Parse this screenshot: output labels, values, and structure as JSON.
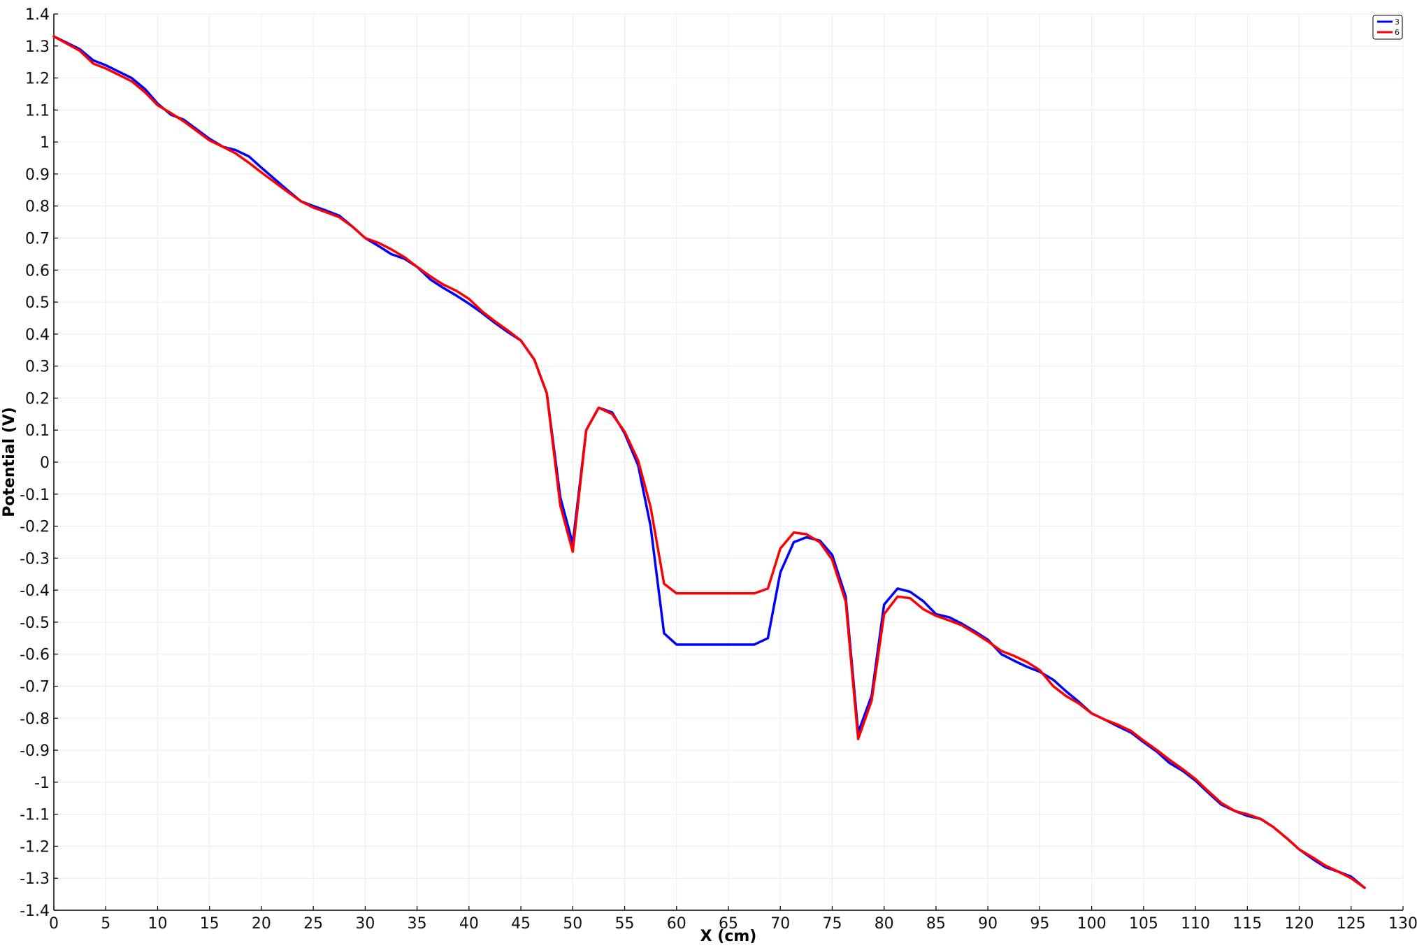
{
  "chart_data": {
    "type": "line",
    "xlabel": "X (cm)",
    "ylabel": "Potential (V)",
    "xlim": [
      0,
      130
    ],
    "ylim": [
      -1.4,
      1.4
    ],
    "x_ticks": [
      0,
      5,
      10,
      15,
      20,
      25,
      30,
      35,
      40,
      45,
      50,
      55,
      60,
      65,
      70,
      75,
      80,
      85,
      90,
      95,
      100,
      105,
      110,
      115,
      120,
      125,
      130
    ],
    "x_tick_labels": [
      "0",
      "5",
      "10",
      "15",
      "20",
      "25",
      "30",
      "35",
      "40",
      "45",
      "50",
      "55",
      "60",
      "65",
      "70",
      "75",
      "80",
      "85",
      "90",
      "95",
      "100",
      "105",
      "110",
      "115",
      "120",
      "125",
      "130"
    ],
    "y_ticks": [
      -1.4,
      -1.3,
      -1.2,
      -1.1,
      -1.0,
      -0.9,
      -0.8,
      -0.7,
      -0.6,
      -0.5,
      -0.4,
      -0.3,
      -0.2,
      -0.1,
      0,
      0.1,
      0.2,
      0.3,
      0.4,
      0.5,
      0.6,
      0.7,
      0.8,
      0.9,
      1.0,
      1.1,
      1.2,
      1.3,
      1.4
    ],
    "y_tick_labels": [
      "-1.4",
      "-1.3",
      "-1.2",
      "-1.1",
      "-1",
      "-0.9",
      "-0.8",
      "-0.7",
      "-0.6",
      "-0.5",
      "-0.4",
      "-0.3",
      "-0.2",
      "-0.1",
      "0",
      "0.1",
      "0.2",
      "0.3",
      "0.4",
      "0.5",
      "0.6",
      "0.7",
      "0.8",
      "0.9",
      "1",
      "1.1",
      "1.2",
      "1.3",
      "1.4"
    ],
    "grid": true,
    "legend_position": "top-right",
    "series": [
      {
        "name": "3",
        "color": "#0000ff",
        "points": [
          [
            0,
            1.33
          ],
          [
            2.5,
            1.29
          ],
          [
            3.8,
            1.255
          ],
          [
            5.0,
            1.24
          ],
          [
            7.5,
            1.2
          ],
          [
            8.8,
            1.165
          ],
          [
            10,
            1.12
          ],
          [
            11.3,
            1.085
          ],
          [
            12.5,
            1.07
          ],
          [
            15.0,
            1.01
          ],
          [
            16.3,
            0.985
          ],
          [
            17.5,
            0.975
          ],
          [
            18.8,
            0.955
          ],
          [
            20.0,
            0.92
          ],
          [
            22.5,
            0.85
          ],
          [
            23.8,
            0.815
          ],
          [
            25.0,
            0.8
          ],
          [
            26.3,
            0.785
          ],
          [
            27.5,
            0.77
          ],
          [
            28.8,
            0.735
          ],
          [
            30.0,
            0.7
          ],
          [
            31.3,
            0.675
          ],
          [
            32.5,
            0.65
          ],
          [
            33.8,
            0.635
          ],
          [
            35.0,
            0.61
          ],
          [
            36.3,
            0.57
          ],
          [
            37.5,
            0.545
          ],
          [
            38.8,
            0.52
          ],
          [
            40.0,
            0.495
          ],
          [
            41.3,
            0.465
          ],
          [
            42.5,
            0.435
          ],
          [
            43.8,
            0.405
          ],
          [
            45.0,
            0.38
          ],
          [
            46.3,
            0.32
          ],
          [
            47.5,
            0.215
          ],
          [
            48.8,
            -0.11
          ],
          [
            50.0,
            -0.255
          ],
          [
            51.3,
            0.1
          ],
          [
            52.5,
            0.17
          ],
          [
            53.8,
            0.155
          ],
          [
            55.0,
            0.09
          ],
          [
            56.3,
            -0.01
          ],
          [
            57.5,
            -0.2
          ],
          [
            58.8,
            -0.535
          ],
          [
            60.0,
            -0.57
          ],
          [
            62.5,
            -0.57
          ],
          [
            65.0,
            -0.57
          ],
          [
            67.5,
            -0.57
          ],
          [
            68.8,
            -0.55
          ],
          [
            70.0,
            -0.345
          ],
          [
            71.3,
            -0.25
          ],
          [
            72.5,
            -0.235
          ],
          [
            73.8,
            -0.245
          ],
          [
            75.0,
            -0.29
          ],
          [
            76.3,
            -0.42
          ],
          [
            77.5,
            -0.845
          ],
          [
            78.8,
            -0.73
          ],
          [
            80.0,
            -0.445
          ],
          [
            81.3,
            -0.395
          ],
          [
            82.5,
            -0.405
          ],
          [
            83.8,
            -0.435
          ],
          [
            85.0,
            -0.475
          ],
          [
            86.3,
            -0.485
          ],
          [
            87.5,
            -0.505
          ],
          [
            88.8,
            -0.53
          ],
          [
            90.0,
            -0.555
          ],
          [
            91.3,
            -0.6
          ],
          [
            92.5,
            -0.62
          ],
          [
            93.8,
            -0.64
          ],
          [
            95.0,
            -0.655
          ],
          [
            96.3,
            -0.68
          ],
          [
            97.5,
            -0.715
          ],
          [
            98.8,
            -0.75
          ],
          [
            100.0,
            -0.785
          ],
          [
            101.3,
            -0.805
          ],
          [
            102.5,
            -0.825
          ],
          [
            103.8,
            -0.845
          ],
          [
            105.0,
            -0.875
          ],
          [
            106.3,
            -0.905
          ],
          [
            107.5,
            -0.94
          ],
          [
            108.8,
            -0.965
          ],
          [
            110.0,
            -0.995
          ],
          [
            111.3,
            -1.035
          ],
          [
            112.5,
            -1.07
          ],
          [
            113.8,
            -1.09
          ],
          [
            115.0,
            -1.105
          ],
          [
            116.3,
            -1.115
          ],
          [
            117.5,
            -1.14
          ],
          [
            118.8,
            -1.175
          ],
          [
            120.0,
            -1.21
          ],
          [
            121.3,
            -1.24
          ],
          [
            122.5,
            -1.265
          ],
          [
            123.8,
            -1.28
          ],
          [
            125.0,
            -1.295
          ],
          [
            126.3,
            -1.33
          ]
        ]
      },
      {
        "name": "6",
        "color": "#ff0000",
        "points": [
          [
            0,
            1.33
          ],
          [
            2.5,
            1.285
          ],
          [
            3.8,
            1.245
          ],
          [
            5.0,
            1.23
          ],
          [
            7.5,
            1.19
          ],
          [
            8.8,
            1.155
          ],
          [
            10,
            1.115
          ],
          [
            11.3,
            1.09
          ],
          [
            12.5,
            1.065
          ],
          [
            15.0,
            1.005
          ],
          [
            16.3,
            0.985
          ],
          [
            17.5,
            0.965
          ],
          [
            18.8,
            0.935
          ],
          [
            20.0,
            0.905
          ],
          [
            22.5,
            0.845
          ],
          [
            23.8,
            0.815
          ],
          [
            25.0,
            0.795
          ],
          [
            26.3,
            0.78
          ],
          [
            27.5,
            0.765
          ],
          [
            28.8,
            0.735
          ],
          [
            30.0,
            0.7
          ],
          [
            31.3,
            0.685
          ],
          [
            32.5,
            0.665
          ],
          [
            33.8,
            0.64
          ],
          [
            35.0,
            0.61
          ],
          [
            36.3,
            0.58
          ],
          [
            37.5,
            0.555
          ],
          [
            38.8,
            0.535
          ],
          [
            40.0,
            0.51
          ],
          [
            41.3,
            0.47
          ],
          [
            42.5,
            0.44
          ],
          [
            43.8,
            0.41
          ],
          [
            45.0,
            0.38
          ],
          [
            46.3,
            0.32
          ],
          [
            47.5,
            0.215
          ],
          [
            48.8,
            -0.135
          ],
          [
            50.0,
            -0.28
          ],
          [
            51.3,
            0.1
          ],
          [
            52.5,
            0.17
          ],
          [
            53.8,
            0.15
          ],
          [
            55.0,
            0.095
          ],
          [
            56.3,
            0.005
          ],
          [
            57.5,
            -0.14
          ],
          [
            58.8,
            -0.38
          ],
          [
            60.0,
            -0.41
          ],
          [
            62.5,
            -0.41
          ],
          [
            65.0,
            -0.41
          ],
          [
            67.5,
            -0.41
          ],
          [
            68.8,
            -0.395
          ],
          [
            70.0,
            -0.27
          ],
          [
            71.3,
            -0.22
          ],
          [
            72.5,
            -0.225
          ],
          [
            73.8,
            -0.25
          ],
          [
            75.0,
            -0.305
          ],
          [
            76.3,
            -0.435
          ],
          [
            77.5,
            -0.865
          ],
          [
            78.8,
            -0.745
          ],
          [
            80.0,
            -0.475
          ],
          [
            81.3,
            -0.42
          ],
          [
            82.5,
            -0.425
          ],
          [
            83.8,
            -0.46
          ],
          [
            85.0,
            -0.48
          ],
          [
            86.3,
            -0.495
          ],
          [
            87.5,
            -0.51
          ],
          [
            88.8,
            -0.535
          ],
          [
            90.0,
            -0.56
          ],
          [
            91.3,
            -0.59
          ],
          [
            92.5,
            -0.605
          ],
          [
            93.8,
            -0.625
          ],
          [
            95.0,
            -0.65
          ],
          [
            96.3,
            -0.7
          ],
          [
            97.5,
            -0.73
          ],
          [
            98.8,
            -0.755
          ],
          [
            100.0,
            -0.785
          ],
          [
            101.3,
            -0.805
          ],
          [
            102.5,
            -0.82
          ],
          [
            103.8,
            -0.84
          ],
          [
            105.0,
            -0.87
          ],
          [
            106.3,
            -0.9
          ],
          [
            107.5,
            -0.93
          ],
          [
            108.8,
            -0.96
          ],
          [
            110.0,
            -0.99
          ],
          [
            111.3,
            -1.03
          ],
          [
            112.5,
            -1.065
          ],
          [
            113.8,
            -1.09
          ],
          [
            115.0,
            -1.1
          ],
          [
            116.3,
            -1.115
          ],
          [
            117.5,
            -1.14
          ],
          [
            118.8,
            -1.175
          ],
          [
            120.0,
            -1.21
          ],
          [
            121.3,
            -1.235
          ],
          [
            122.5,
            -1.26
          ],
          [
            123.8,
            -1.28
          ],
          [
            125.0,
            -1.3
          ],
          [
            126.3,
            -1.33
          ]
        ]
      }
    ]
  }
}
